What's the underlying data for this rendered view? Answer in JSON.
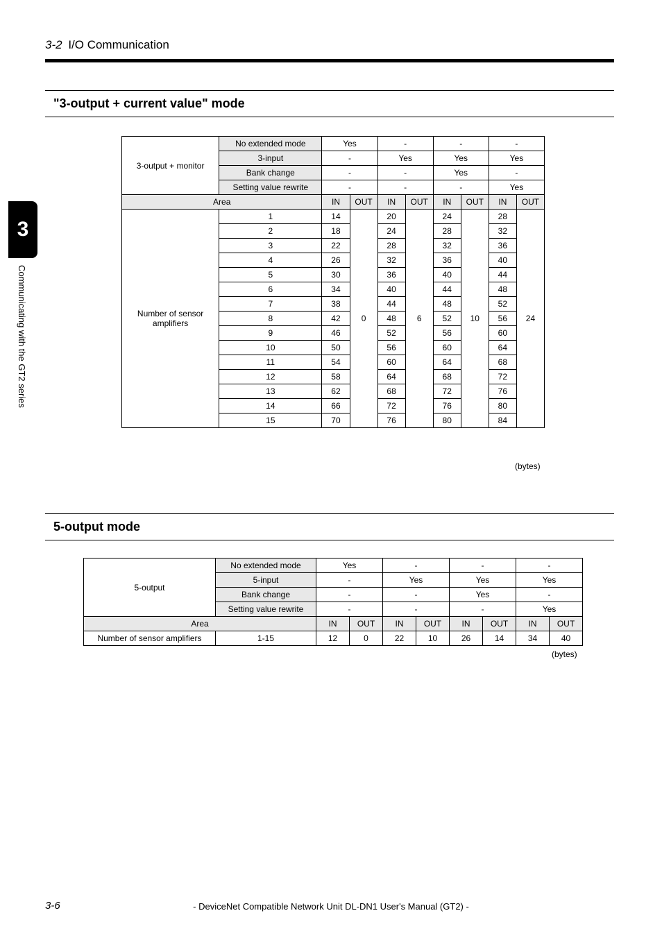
{
  "header": {
    "section": "3-2",
    "title": "I/O Communication"
  },
  "section1": {
    "title": "\"3-output + current value\" mode",
    "group_label": "3-output + monitor",
    "modes": [
      "No extended mode",
      "3-input",
      "Bank change",
      "Setting value rewrite"
    ],
    "mode_flags": [
      [
        "Yes",
        "-",
        "-",
        "-"
      ],
      [
        "-",
        "Yes",
        "Yes",
        "Yes"
      ],
      [
        "-",
        "-",
        "Yes",
        "-"
      ],
      [
        "-",
        "-",
        "-",
        "Yes"
      ]
    ],
    "area_label": "Area",
    "in_label": "IN",
    "out_label": "OUT",
    "row_group": "Number of sensor amplifiers",
    "rows_idx": [
      "1",
      "2",
      "3",
      "4",
      "5",
      "6",
      "7",
      "8",
      "9",
      "10",
      "11",
      "12",
      "13",
      "14",
      "15"
    ],
    "in_cols": [
      [
        14,
        18,
        22,
        26,
        30,
        34,
        38,
        42,
        46,
        50,
        54,
        58,
        62,
        66,
        70
      ],
      [
        20,
        24,
        28,
        32,
        36,
        40,
        44,
        48,
        52,
        56,
        60,
        64,
        68,
        72,
        76
      ],
      [
        24,
        28,
        32,
        36,
        40,
        44,
        48,
        52,
        56,
        60,
        64,
        68,
        72,
        76,
        80
      ],
      [
        28,
        32,
        36,
        40,
        44,
        48,
        52,
        56,
        60,
        64,
        68,
        72,
        76,
        80,
        84
      ]
    ],
    "out_vals": [
      "0",
      "6",
      "10",
      "24"
    ],
    "bytes": "(bytes)"
  },
  "section2": {
    "title": "5-output mode",
    "group_label": "5-output",
    "modes": [
      "No extended mode",
      "5-input",
      "Bank change",
      "Setting value rewrite"
    ],
    "mode_flags": [
      [
        "Yes",
        "-",
        "-",
        "-"
      ],
      [
        "-",
        "Yes",
        "Yes",
        "Yes"
      ],
      [
        "-",
        "-",
        "Yes",
        "-"
      ],
      [
        "-",
        "-",
        "-",
        "Yes"
      ]
    ],
    "area_label": "Area",
    "in_label": "IN",
    "out_label": "OUT",
    "row_label": "Number of sensor amplifiers",
    "row_idx": "1-15",
    "vals": [
      [
        "12",
        "0"
      ],
      [
        "22",
        "10"
      ],
      [
        "26",
        "14"
      ],
      [
        "34",
        "40"
      ]
    ],
    "bytes": "(bytes)"
  },
  "tab": {
    "num": "3",
    "text": "Communicating with the GT2 series"
  },
  "footer": {
    "page": "3-6",
    "text": "- DeviceNet Compatible Network Unit DL-DN1 User's Manual (GT2) -"
  }
}
